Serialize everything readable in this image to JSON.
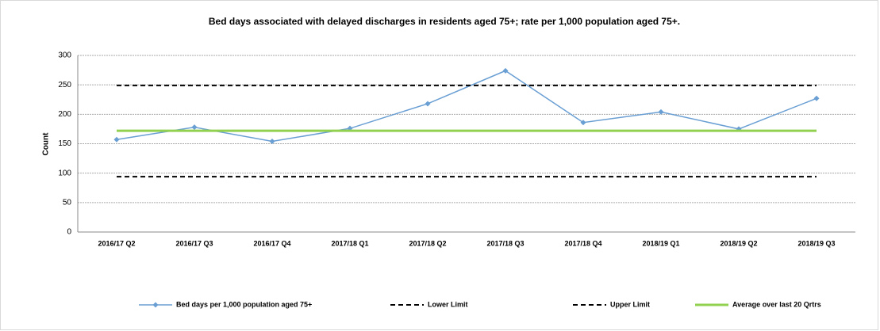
{
  "chart_data": {
    "type": "line",
    "title": "Bed days associated with delayed discharges in residents aged 75+; rate per 1,000 population aged 75+.",
    "ylabel": "Count",
    "categories": [
      "2016/17 Q2",
      "2016/17 Q3",
      "2016/17 Q4",
      "2017/18 Q1",
      "2017/18 Q2",
      "2017/18 Q3",
      "2017/18 Q4",
      "2018/19 Q1",
      "2018/19 Q2",
      "2018/19 Q3"
    ],
    "series": [
      {
        "name": "Bed days per 1,000 population aged 75+",
        "color": "#6a9fd4",
        "marker": "diamond",
        "values": [
          157,
          178,
          154,
          176,
          218,
          274,
          186,
          204,
          175,
          227
        ]
      },
      {
        "name": "Lower Limit",
        "color": "#000000",
        "dash": true,
        "values": [
          94,
          94,
          94,
          94,
          94,
          94,
          94,
          94,
          94,
          94
        ]
      },
      {
        "name": "Upper Limit",
        "color": "#000000",
        "dash": true,
        "values": [
          249,
          249,
          249,
          249,
          249,
          249,
          249,
          249,
          249,
          249
        ]
      },
      {
        "name": "Average over last 20 Qrtrs",
        "color": "#92d050",
        "thick": true,
        "values": [
          172,
          172,
          172,
          172,
          172,
          172,
          172,
          172,
          172,
          172
        ]
      }
    ],
    "ylim": [
      0,
      300
    ],
    "yticks": [
      0,
      50,
      100,
      150,
      200,
      250,
      300
    ],
    "grid": true,
    "legend": "bottom"
  }
}
